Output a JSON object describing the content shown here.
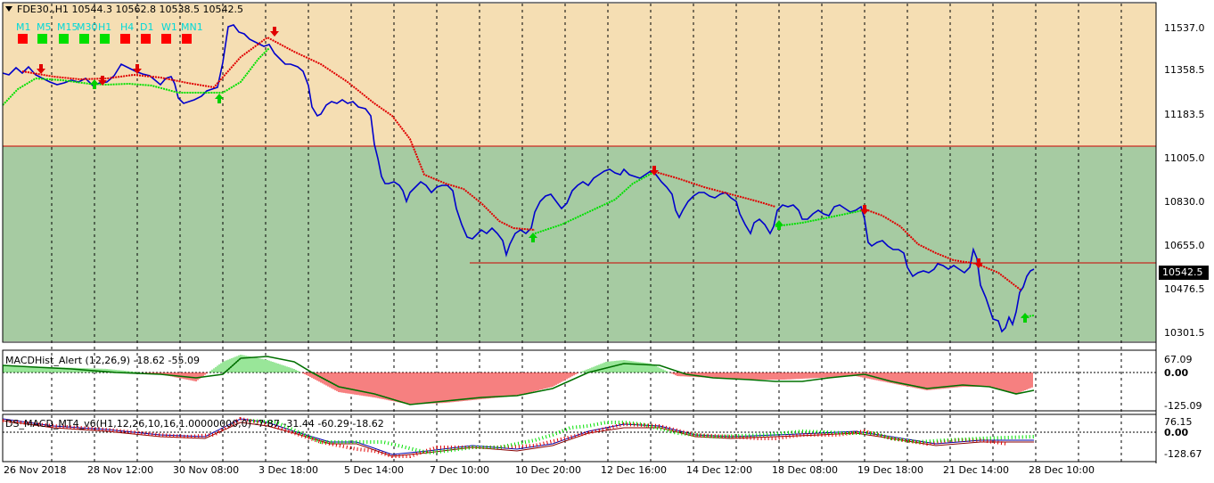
{
  "header": {
    "symbol": "FDE30.,H1",
    "ohlc": "10544.3 10562.8 10538.5 10542.5"
  },
  "timeframes": [
    {
      "label": "M1",
      "color": "#ff0000"
    },
    {
      "label": "M5",
      "color": "#00e000"
    },
    {
      "label": "M15",
      "color": "#00e000"
    },
    {
      "label": "M30",
      "color": "#00e000"
    },
    {
      "label": "H1",
      "color": "#00e000"
    },
    {
      "label": "H4",
      "color": "#ff0000"
    },
    {
      "label": "D1",
      "color": "#ff0000"
    },
    {
      "label": "W1",
      "color": "#ff0000"
    },
    {
      "label": "MN1",
      "color": "#ff0000"
    }
  ],
  "price_axis": [
    "11537.0",
    "11358.5",
    "11183.5",
    "11005.0",
    "10830.0",
    "10655.0",
    "10476.5",
    "10301.5"
  ],
  "current_price": "10542.5",
  "date_axis": [
    "26 Nov 2018",
    "28 Nov 12:00",
    "30 Nov 08:00",
    "3 Dec 18:00",
    "5 Dec 14:00",
    "7 Dec 10:00",
    "10 Dec 20:00",
    "12 Dec 16:00",
    "14 Dec 12:00",
    "18 Dec 08:00",
    "19 Dec 18:00",
    "21 Dec 14:00",
    "28 Dec 10:00"
  ],
  "indicator1": {
    "label": "MACDHist_Alert (12,26,9) -18.62 -55.09",
    "axis": [
      "67.09",
      "0.00",
      "-125.09"
    ]
  },
  "indicator2": {
    "label": "DS_MACD_MT4_v6(H1,12,26,10,16,1.00000000,0) -7.87 -31.44 -60.29 -18.62",
    "axis": [
      "76.15",
      "0.00",
      "-128.67"
    ]
  },
  "colors": {
    "zone_upper": "#f5deb3",
    "zone_lower": "#a6cba2",
    "price_line": "#0000cc",
    "ma_down": "#e00000",
    "ma_up": "#00e000",
    "level_line": "#cc0000"
  }
}
